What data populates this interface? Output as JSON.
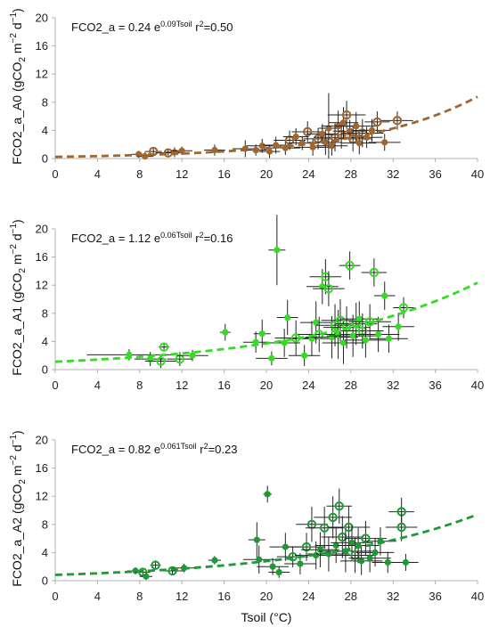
{
  "chart_data": [
    {
      "type": "scatter",
      "id": "A0",
      "ylabel_main": "FCO2_a_A0 (gCO",
      "ylabel_sub": "2",
      "ylabel_mid": " m",
      "ylabel_sup1": "−2",
      "ylabel_mid2": " d",
      "ylabel_sup2": "−1",
      "ylabel_end": ")",
      "eq_prefix": "FCO2_a = 0.24 e",
      "eq_exp": "0.09Tsoil",
      "eq_r": " r",
      "eq_r_sup": "2",
      "eq_suffix": "=0.50",
      "color": "#a0662e",
      "xlim": [
        0,
        40
      ],
      "ylim": [
        0,
        20
      ],
      "xticks": [
        "0",
        "4",
        "8",
        "12",
        "16",
        "20",
        "24",
        "28",
        "32",
        "36",
        "40"
      ],
      "yticks": [
        "0",
        "4",
        "8",
        "12",
        "16",
        "20"
      ],
      "fit": {
        "a": 0.24,
        "b": 0.09
      },
      "points": [
        {
          "x": 7.9,
          "y": 0.6,
          "ex": 0.7,
          "ey": 0.5,
          "open": false
        },
        {
          "x": 8.5,
          "y": 0.3,
          "ex": 0.8,
          "ey": 0.6,
          "open": false
        },
        {
          "x": 9.3,
          "y": 1.0,
          "ex": 0.8,
          "ey": 0.5,
          "open": true
        },
        {
          "x": 10.7,
          "y": 0.8,
          "ex": 1.2,
          "ey": 0.5,
          "open": true
        },
        {
          "x": 11.3,
          "y": 0.9,
          "ex": 0.9,
          "ey": 0.7,
          "open": false
        },
        {
          "x": 12.0,
          "y": 1.1,
          "ex": 1.0,
          "ey": 0.6,
          "open": false
        },
        {
          "x": 15.1,
          "y": 1.2,
          "ex": 1.0,
          "ey": 0.8,
          "open": false
        },
        {
          "x": 18.0,
          "y": 1.4,
          "ex": 1.2,
          "ey": 1.2,
          "open": false
        },
        {
          "x": 19.0,
          "y": 1.2,
          "ex": 1.0,
          "ey": 0.8,
          "open": false
        },
        {
          "x": 19.6,
          "y": 1.8,
          "ex": 1.5,
          "ey": 1.0,
          "open": false
        },
        {
          "x": 20.3,
          "y": 1.0,
          "ex": 1.0,
          "ey": 0.9,
          "open": false
        },
        {
          "x": 20.9,
          "y": 1.9,
          "ex": 1.2,
          "ey": 1.2,
          "open": false
        },
        {
          "x": 21.8,
          "y": 1.5,
          "ex": 1.4,
          "ey": 1.0,
          "open": false
        },
        {
          "x": 22.2,
          "y": 2.6,
          "ex": 1.5,
          "ey": 1.4,
          "open": true
        },
        {
          "x": 22.8,
          "y": 3.1,
          "ex": 1.2,
          "ey": 1.2,
          "open": false
        },
        {
          "x": 23.4,
          "y": 2.2,
          "ex": 1.3,
          "ey": 1.0,
          "open": false
        },
        {
          "x": 23.9,
          "y": 3.8,
          "ex": 1.5,
          "ey": 1.5,
          "open": true
        },
        {
          "x": 24.4,
          "y": 1.6,
          "ex": 1.8,
          "ey": 1.2,
          "open": false
        },
        {
          "x": 24.9,
          "y": 2.8,
          "ex": 1.4,
          "ey": 1.5,
          "open": true
        },
        {
          "x": 25.3,
          "y": 3.5,
          "ex": 1.5,
          "ey": 1.4,
          "open": false
        },
        {
          "x": 25.6,
          "y": 2.3,
          "ex": 1.6,
          "ey": 1.8,
          "open": false
        },
        {
          "x": 25.9,
          "y": 4.3,
          "ex": 1.0,
          "ey": 5.0,
          "open": false
        },
        {
          "x": 26.2,
          "y": 1.8,
          "ex": 1.5,
          "ey": 1.4,
          "open": false
        },
        {
          "x": 26.5,
          "y": 3.0,
          "ex": 2.0,
          "ey": 2.0,
          "open": true
        },
        {
          "x": 26.8,
          "y": 4.6,
          "ex": 1.6,
          "ey": 2.2,
          "open": false
        },
        {
          "x": 27.1,
          "y": 3.4,
          "ex": 1.5,
          "ey": 2.0,
          "open": true
        },
        {
          "x": 27.3,
          "y": 5.1,
          "ex": 1.4,
          "ey": 2.2,
          "open": false
        },
        {
          "x": 27.6,
          "y": 6.2,
          "ex": 1.8,
          "ey": 2.0,
          "open": true
        },
        {
          "x": 27.9,
          "y": 3.9,
          "ex": 1.6,
          "ey": 1.6,
          "open": false
        },
        {
          "x": 28.2,
          "y": 2.8,
          "ex": 1.8,
          "ey": 1.8,
          "open": true
        },
        {
          "x": 28.5,
          "y": 4.6,
          "ex": 2.0,
          "ey": 2.0,
          "open": false
        },
        {
          "x": 28.8,
          "y": 2.2,
          "ex": 1.6,
          "ey": 1.6,
          "open": false
        },
        {
          "x": 29.1,
          "y": 3.6,
          "ex": 2.0,
          "ey": 2.0,
          "open": true
        },
        {
          "x": 29.5,
          "y": 3.0,
          "ex": 1.5,
          "ey": 1.5,
          "open": false
        },
        {
          "x": 30.0,
          "y": 4.0,
          "ex": 1.8,
          "ey": 1.6,
          "open": false
        },
        {
          "x": 30.5,
          "y": 5.2,
          "ex": 1.2,
          "ey": 1.5,
          "open": true
        },
        {
          "x": 31.2,
          "y": 2.3,
          "ex": 1.5,
          "ey": 1.2,
          "open": false
        },
        {
          "x": 32.4,
          "y": 5.4,
          "ex": 1.5,
          "ey": 1.3,
          "open": true
        }
      ]
    },
    {
      "type": "scatter",
      "id": "A1",
      "ylabel_main": "FCO2_a_A1 (gCO",
      "ylabel_sub": "2",
      "ylabel_mid": " m",
      "ylabel_sup1": "−2",
      "ylabel_mid2": " d",
      "ylabel_sup2": "−1",
      "ylabel_end": ")",
      "eq_prefix": "FCO2_a = 1.12 e",
      "eq_exp": "0.06Tsoil",
      "eq_r": " r",
      "eq_r_sup": "2",
      "eq_suffix": "=0.16",
      "color": "#33dd22",
      "xlim": [
        0,
        40
      ],
      "ylim": [
        0,
        20
      ],
      "xticks": [
        "0",
        "4",
        "8",
        "12",
        "16",
        "20",
        "24",
        "28",
        "32",
        "36",
        "40"
      ],
      "yticks": [
        "0",
        "4",
        "8",
        "12",
        "16",
        "20"
      ],
      "fit": {
        "a": 1.12,
        "b": 0.06
      },
      "points": [
        {
          "x": 7.0,
          "y": 2.1,
          "ex": 4.0,
          "ey": 0.8,
          "open": false
        },
        {
          "x": 9.0,
          "y": 1.5,
          "ex": 1.5,
          "ey": 1.0,
          "open": false
        },
        {
          "x": 10.0,
          "y": 1.2,
          "ex": 1.5,
          "ey": 1.0,
          "open": true
        },
        {
          "x": 10.3,
          "y": 3.2,
          "ex": 0.5,
          "ey": 0.5,
          "open": true
        },
        {
          "x": 11.8,
          "y": 1.5,
          "ex": 1.2,
          "ey": 1.0,
          "open": true
        },
        {
          "x": 13.0,
          "y": 2.0,
          "ex": 1.5,
          "ey": 0.8,
          "open": false
        },
        {
          "x": 16.1,
          "y": 5.3,
          "ex": 0.5,
          "ey": 1.2,
          "open": false
        },
        {
          "x": 19.0,
          "y": 3.9,
          "ex": 1.2,
          "ey": 1.5,
          "open": false
        },
        {
          "x": 19.6,
          "y": 5.1,
          "ex": 0.8,
          "ey": 2.0,
          "open": false
        },
        {
          "x": 20.5,
          "y": 1.6,
          "ex": 1.5,
          "ey": 1.0,
          "open": false
        },
        {
          "x": 21.0,
          "y": 17.0,
          "ex": 0.8,
          "ey": 5.0,
          "open": false
        },
        {
          "x": 21.7,
          "y": 3.8,
          "ex": 1.5,
          "ey": 2.0,
          "open": false
        },
        {
          "x": 22.0,
          "y": 7.4,
          "ex": 1.0,
          "ey": 2.5,
          "open": false
        },
        {
          "x": 22.8,
          "y": 4.5,
          "ex": 2.0,
          "ey": 2.5,
          "open": true
        },
        {
          "x": 23.6,
          "y": 2.0,
          "ex": 1.5,
          "ey": 1.5,
          "open": false
        },
        {
          "x": 24.3,
          "y": 4.4,
          "ex": 2.0,
          "ey": 2.5,
          "open": false
        },
        {
          "x": 24.7,
          "y": 6.7,
          "ex": 1.5,
          "ey": 3.0,
          "open": false
        },
        {
          "x": 25.0,
          "y": 5.0,
          "ex": 2.0,
          "ey": 2.5,
          "open": true
        },
        {
          "x": 25.3,
          "y": 11.8,
          "ex": 1.5,
          "ey": 2.5,
          "open": false
        },
        {
          "x": 25.6,
          "y": 13.2,
          "ex": 1.5,
          "ey": 2.5,
          "open": true
        },
        {
          "x": 25.9,
          "y": 11.5,
          "ex": 1.5,
          "ey": 2.5,
          "open": true
        },
        {
          "x": 26.2,
          "y": 4.6,
          "ex": 2.5,
          "ey": 3.0,
          "open": false
        },
        {
          "x": 26.5,
          "y": 6.3,
          "ex": 1.8,
          "ey": 3.0,
          "open": true
        },
        {
          "x": 26.8,
          "y": 5.0,
          "ex": 2.5,
          "ey": 3.5,
          "open": false
        },
        {
          "x": 27.0,
          "y": 7.0,
          "ex": 1.8,
          "ey": 3.0,
          "open": true
        },
        {
          "x": 27.3,
          "y": 3.8,
          "ex": 2.0,
          "ey": 3.0,
          "open": false
        },
        {
          "x": 27.6,
          "y": 6.0,
          "ex": 2.2,
          "ey": 3.0,
          "open": true
        },
        {
          "x": 27.9,
          "y": 14.8,
          "ex": 1.0,
          "ey": 2.0,
          "open": true
        },
        {
          "x": 28.2,
          "y": 4.8,
          "ex": 2.5,
          "ey": 3.0,
          "open": false
        },
        {
          "x": 28.5,
          "y": 6.5,
          "ex": 2.0,
          "ey": 3.0,
          "open": true
        },
        {
          "x": 28.8,
          "y": 7.2,
          "ex": 1.8,
          "ey": 2.5,
          "open": false
        },
        {
          "x": 29.1,
          "y": 5.5,
          "ex": 2.0,
          "ey": 2.5,
          "open": true
        },
        {
          "x": 29.4,
          "y": 4.2,
          "ex": 2.0,
          "ey": 2.5,
          "open": false
        },
        {
          "x": 29.8,
          "y": 6.8,
          "ex": 2.0,
          "ey": 2.5,
          "open": true
        },
        {
          "x": 30.2,
          "y": 13.8,
          "ex": 1.2,
          "ey": 2.0,
          "open": true
        },
        {
          "x": 30.6,
          "y": 5.0,
          "ex": 2.0,
          "ey": 2.5,
          "open": false
        },
        {
          "x": 31.2,
          "y": 10.5,
          "ex": 1.0,
          "ey": 2.0,
          "open": false
        },
        {
          "x": 31.6,
          "y": 4.4,
          "ex": 1.8,
          "ey": 2.0,
          "open": false
        },
        {
          "x": 32.5,
          "y": 6.1,
          "ex": 1.5,
          "ey": 2.0,
          "open": false
        },
        {
          "x": 33.0,
          "y": 8.8,
          "ex": 1.0,
          "ey": 1.5,
          "open": true
        }
      ]
    },
    {
      "type": "scatter",
      "id": "A2",
      "ylabel_main": "FCO2_a_A2 (gCO",
      "ylabel_sub": "2",
      "ylabel_mid": " m",
      "ylabel_sup1": "−2",
      "ylabel_mid2": " d",
      "ylabel_sup2": "−1",
      "ylabel_end": ")",
      "eq_prefix": "FCO2_a = 0.82 e",
      "eq_exp": "0.061Tsoil",
      "eq_r": " r",
      "eq_r_sup": "2",
      "eq_suffix": "=0.23",
      "color": "#1e9a35",
      "xlim": [
        0,
        40
      ],
      "ylim": [
        0,
        20
      ],
      "xticks": [
        "0",
        "4",
        "8",
        "12",
        "16",
        "20",
        "24",
        "28",
        "32",
        "36",
        "40"
      ],
      "yticks": [
        "0",
        "4",
        "8",
        "12",
        "16",
        "20"
      ],
      "xlabel": "Tsoil (°C)",
      "fit": {
        "a": 0.82,
        "b": 0.061
      },
      "points": [
        {
          "x": 7.6,
          "y": 1.4,
          "ex": 0.8,
          "ey": 0.5,
          "open": false
        },
        {
          "x": 8.3,
          "y": 1.2,
          "ex": 0.7,
          "ey": 0.5,
          "open": true
        },
        {
          "x": 8.6,
          "y": 0.6,
          "ex": 0.6,
          "ey": 0.5,
          "open": false
        },
        {
          "x": 9.5,
          "y": 2.2,
          "ex": 0.5,
          "ey": 0.5,
          "open": true
        },
        {
          "x": 11.1,
          "y": 1.4,
          "ex": 1.2,
          "ey": 0.6,
          "open": true
        },
        {
          "x": 12.2,
          "y": 1.8,
          "ex": 1.0,
          "ey": 0.6,
          "open": false
        },
        {
          "x": 15.1,
          "y": 2.9,
          "ex": 0.6,
          "ey": 0.6,
          "open": false
        },
        {
          "x": 19.1,
          "y": 5.8,
          "ex": 0.8,
          "ey": 2.5,
          "open": false
        },
        {
          "x": 19.3,
          "y": 3.0,
          "ex": 1.5,
          "ey": 2.0,
          "open": false
        },
        {
          "x": 20.1,
          "y": 12.3,
          "ex": 0.4,
          "ey": 1.2,
          "open": false
        },
        {
          "x": 20.6,
          "y": 2.0,
          "ex": 1.5,
          "ey": 1.2,
          "open": false
        },
        {
          "x": 21.2,
          "y": 1.2,
          "ex": 1.0,
          "ey": 0.8,
          "open": false
        },
        {
          "x": 21.8,
          "y": 4.8,
          "ex": 1.5,
          "ey": 2.0,
          "open": false
        },
        {
          "x": 22.5,
          "y": 3.4,
          "ex": 1.5,
          "ey": 1.5,
          "open": true
        },
        {
          "x": 23.2,
          "y": 2.4,
          "ex": 1.5,
          "ey": 1.5,
          "open": false
        },
        {
          "x": 23.8,
          "y": 4.8,
          "ex": 1.8,
          "ey": 2.0,
          "open": true
        },
        {
          "x": 24.3,
          "y": 8.0,
          "ex": 1.5,
          "ey": 2.5,
          "open": true
        },
        {
          "x": 24.7,
          "y": 3.6,
          "ex": 2.0,
          "ey": 2.0,
          "open": false
        },
        {
          "x": 25.1,
          "y": 4.4,
          "ex": 1.8,
          "ey": 2.5,
          "open": false
        },
        {
          "x": 25.5,
          "y": 7.5,
          "ex": 1.8,
          "ey": 3.0,
          "open": true
        },
        {
          "x": 25.9,
          "y": 3.8,
          "ex": 2.0,
          "ey": 2.5,
          "open": false
        },
        {
          "x": 26.3,
          "y": 9.0,
          "ex": 1.8,
          "ey": 3.0,
          "open": true
        },
        {
          "x": 26.6,
          "y": 5.0,
          "ex": 2.0,
          "ey": 2.5,
          "open": false
        },
        {
          "x": 26.9,
          "y": 10.6,
          "ex": 1.2,
          "ey": 2.5,
          "open": true
        },
        {
          "x": 27.2,
          "y": 6.2,
          "ex": 2.0,
          "ey": 3.0,
          "open": true
        },
        {
          "x": 27.5,
          "y": 4.2,
          "ex": 2.5,
          "ey": 3.0,
          "open": false
        },
        {
          "x": 27.8,
          "y": 7.6,
          "ex": 2.0,
          "ey": 3.0,
          "open": true
        },
        {
          "x": 28.1,
          "y": 5.4,
          "ex": 2.0,
          "ey": 2.5,
          "open": false
        },
        {
          "x": 28.4,
          "y": 3.6,
          "ex": 2.0,
          "ey": 2.5,
          "open": true
        },
        {
          "x": 28.7,
          "y": 5.0,
          "ex": 2.0,
          "ey": 2.5,
          "open": false
        },
        {
          "x": 29.0,
          "y": 2.8,
          "ex": 2.0,
          "ey": 2.0,
          "open": false
        },
        {
          "x": 29.4,
          "y": 6.0,
          "ex": 2.0,
          "ey": 2.5,
          "open": true
        },
        {
          "x": 29.8,
          "y": 3.2,
          "ex": 2.0,
          "ey": 2.0,
          "open": false
        },
        {
          "x": 30.3,
          "y": 4.0,
          "ex": 1.8,
          "ey": 2.0,
          "open": false
        },
        {
          "x": 30.8,
          "y": 5.6,
          "ex": 1.5,
          "ey": 2.0,
          "open": false
        },
        {
          "x": 31.5,
          "y": 2.6,
          "ex": 1.5,
          "ey": 1.5,
          "open": false
        },
        {
          "x": 32.8,
          "y": 9.8,
          "ex": 1.2,
          "ey": 2.0,
          "open": true
        },
        {
          "x": 32.8,
          "y": 7.6,
          "ex": 1.5,
          "ey": 2.0,
          "open": true
        },
        {
          "x": 33.2,
          "y": 2.6,
          "ex": 1.2,
          "ey": 1.2,
          "open": false
        }
      ]
    }
  ]
}
